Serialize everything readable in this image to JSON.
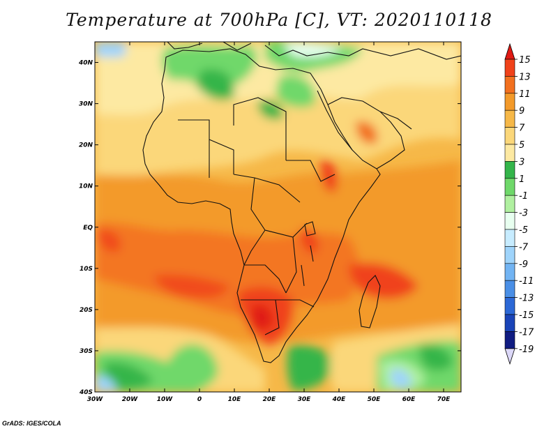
{
  "title": "Temperature at 700hPa [C], VT: 2020110118",
  "footer": "GrADS: IGES/COLA",
  "map": {
    "lon_labels": [
      "30W",
      "20W",
      "10W",
      "0",
      "10E",
      "20E",
      "30E",
      "40E",
      "50E",
      "60E",
      "70E"
    ],
    "lat_labels": [
      "40N",
      "30N",
      "20N",
      "10N",
      "EQ",
      "10S",
      "20S",
      "30S",
      "40S"
    ],
    "lon_range": [
      -30,
      75
    ],
    "lat_range": [
      -40,
      45
    ]
  },
  "colorbar": {
    "labels": [
      "15",
      "13",
      "11",
      "9",
      "7",
      "5",
      "3",
      "1",
      "-1",
      "-3",
      "-5",
      "-7",
      "-9",
      "-11",
      "-13",
      "-15",
      "-17",
      "-19"
    ],
    "colors": [
      "#e01a14",
      "#f0421a",
      "#f2701f",
      "#f39a2a",
      "#f6b848",
      "#fbd77a",
      "#fde9a2",
      "#34b54a",
      "#6fd86a",
      "#b0f0a0",
      "#e8fff0",
      "#c7ecff",
      "#9fd4fb",
      "#72b4f3",
      "#4a8fe6",
      "#2c68d6",
      "#1a44b8",
      "#101c82",
      "#dcd8f8"
    ]
  }
}
